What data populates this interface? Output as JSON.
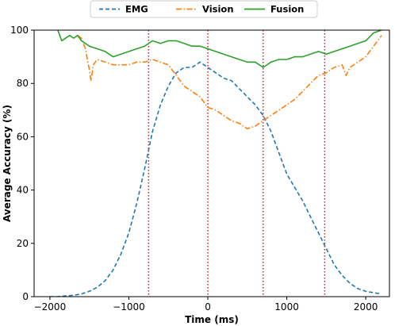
{
  "chart_data": {
    "type": "line",
    "title": "",
    "xlabel": "Time (ms)",
    "ylabel": "Average Accuracy (%)",
    "xlim": [
      -2200,
      2300
    ],
    "ylim": [
      0,
      100
    ],
    "xticks": [
      -2000,
      -1000,
      0,
      1000,
      2000
    ],
    "yticks": [
      0,
      20,
      40,
      60,
      80,
      100
    ],
    "legend_position": "top-center",
    "grid": false,
    "vlines": {
      "x": [
        -750,
        0,
        700,
        1480
      ],
      "color": "#e31a1c",
      "style": "dotted"
    },
    "series": [
      {
        "name": "EMG",
        "color": "#1f77b4",
        "style": "dashed",
        "x": [
          -2000,
          -1900,
          -1800,
          -1700,
          -1600,
          -1500,
          -1400,
          -1300,
          -1200,
          -1100,
          -1000,
          -900,
          -800,
          -700,
          -600,
          -500,
          -400,
          -300,
          -200,
          -100,
          0,
          100,
          200,
          300,
          400,
          500,
          600,
          700,
          800,
          900,
          1000,
          1100,
          1200,
          1300,
          1400,
          1500,
          1600,
          1700,
          1800,
          1900,
          2000,
          2100,
          2200
        ],
        "y": [
          0,
          0,
          0.3,
          0.5,
          1,
          2,
          3.5,
          6,
          10,
          16,
          24,
          35,
          48,
          62,
          72,
          79,
          84,
          86,
          86,
          88,
          86,
          84,
          82,
          81,
          78,
          75,
          72,
          68,
          62,
          54,
          46,
          41,
          36,
          30,
          24,
          18,
          12,
          8,
          5,
          3,
          2,
          1.5,
          1
        ]
      },
      {
        "name": "Vision",
        "color": "#ff7f0e",
        "style": "dashdot",
        "x": [
          -1650,
          -1600,
          -1550,
          -1500,
          -1480,
          -1450,
          -1400,
          -1300,
          -1200,
          -1100,
          -1000,
          -900,
          -800,
          -700,
          -600,
          -500,
          -400,
          -300,
          -200,
          -100,
          0,
          100,
          200,
          300,
          400,
          500,
          600,
          700,
          800,
          900,
          1000,
          1100,
          1200,
          1300,
          1400,
          1500,
          1600,
          1700,
          1750,
          1800,
          1900,
          2000,
          2100,
          2200
        ],
        "y": [
          98,
          97,
          93,
          85,
          81,
          87,
          89,
          88,
          87,
          87,
          87,
          88,
          88,
          89,
          88,
          87,
          83,
          79,
          77,
          75,
          71,
          70,
          68,
          66,
          65,
          63,
          64,
          66,
          68,
          70,
          72,
          74,
          77,
          80,
          83,
          84,
          86,
          87,
          83,
          86,
          88,
          90,
          94,
          98
        ]
      },
      {
        "name": "Fusion",
        "color": "#2ca02c",
        "style": "solid",
        "x": [
          -1900,
          -1850,
          -1800,
          -1750,
          -1700,
          -1650,
          -1600,
          -1500,
          -1400,
          -1300,
          -1200,
          -1100,
          -1000,
          -900,
          -800,
          -700,
          -600,
          -500,
          -400,
          -300,
          -200,
          -100,
          0,
          100,
          200,
          300,
          400,
          500,
          600,
          700,
          800,
          900,
          1000,
          1100,
          1200,
          1300,
          1400,
          1500,
          1600,
          1700,
          1800,
          1900,
          2000,
          2100,
          2200
        ],
        "y": [
          100,
          96,
          97,
          98,
          97,
          98,
          96,
          94,
          93,
          92,
          90,
          91,
          92,
          93,
          94,
          96,
          95,
          96,
          96,
          95,
          94,
          94,
          93,
          92,
          91,
          90,
          89,
          88,
          88,
          86,
          88,
          89,
          89,
          90,
          90,
          91,
          92,
          91,
          92,
          93,
          94,
          95,
          96,
          99,
          100
        ]
      }
    ]
  }
}
